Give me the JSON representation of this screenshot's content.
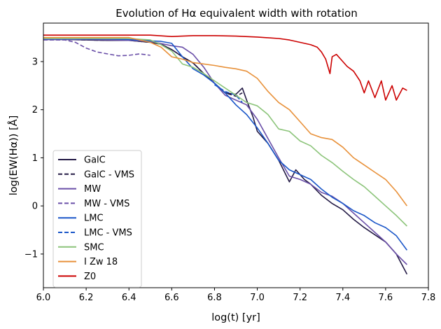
{
  "chart_data": {
    "type": "line",
    "title": "Evolution of Hα equivalent width with rotation",
    "xlabel": "log(t) [yr]",
    "ylabel": "log(EW(Hα)) [Å]",
    "xlim": [
      6.0,
      7.8
    ],
    "ylim": [
      -1.7,
      3.8
    ],
    "xticks": [
      "6.0",
      "6.2",
      "6.4",
      "6.6",
      "6.8",
      "7.0",
      "7.2",
      "7.4",
      "7.6",
      "7.8"
    ],
    "yticks": [
      "3",
      "2",
      "1",
      "0",
      "−1"
    ],
    "legend_position": "lower-left",
    "series": [
      {
        "name": "GalC",
        "color": "#231a45",
        "dash": "solid",
        "x": [
          6.0,
          6.1,
          6.2,
          6.3,
          6.4,
          6.5,
          6.55,
          6.6,
          6.65,
          6.7,
          6.75,
          6.8,
          6.85,
          6.9,
          6.93,
          6.95,
          6.98,
          7.0,
          7.05,
          7.1,
          7.15,
          7.18,
          7.22,
          7.25,
          7.3,
          7.35,
          7.4,
          7.45,
          7.5,
          7.55,
          7.6,
          7.65,
          7.7
        ],
        "y": [
          3.46,
          3.46,
          3.45,
          3.44,
          3.44,
          3.4,
          3.36,
          3.25,
          3.1,
          2.97,
          2.75,
          2.55,
          2.35,
          2.32,
          2.45,
          2.2,
          1.85,
          1.55,
          1.3,
          0.95,
          0.5,
          0.75,
          0.55,
          0.45,
          0.22,
          0.05,
          -0.08,
          -0.28,
          -0.45,
          -0.6,
          -0.75,
          -1.0,
          -1.42
        ]
      },
      {
        "name": "GalC - VMS",
        "color": "#231a45",
        "dash": "dashed",
        "x": [
          6.0,
          6.1,
          6.2,
          6.3,
          6.4,
          6.5,
          6.55,
          6.6,
          6.65,
          6.7,
          6.75,
          6.8,
          6.85,
          6.9,
          6.93
        ],
        "y": [
          3.46,
          3.46,
          3.45,
          3.44,
          3.44,
          3.4,
          3.36,
          3.25,
          3.1,
          2.97,
          2.75,
          2.55,
          2.35,
          2.28,
          2.35
        ]
      },
      {
        "name": "MW",
        "color": "#6a4fa8",
        "dash": "solid",
        "x": [
          6.0,
          6.1,
          6.2,
          6.3,
          6.4,
          6.5,
          6.6,
          6.65,
          6.7,
          6.75,
          6.8,
          6.85,
          6.9,
          6.95,
          7.0,
          7.05,
          7.1,
          7.15,
          7.2,
          7.25,
          7.3,
          7.35,
          7.4,
          7.45,
          7.5,
          7.55,
          7.6,
          7.65,
          7.7
        ],
        "y": [
          3.46,
          3.46,
          3.46,
          3.45,
          3.44,
          3.42,
          3.33,
          3.3,
          3.15,
          2.88,
          2.55,
          2.3,
          2.2,
          2.1,
          1.8,
          1.4,
          1.0,
          0.62,
          0.55,
          0.45,
          0.28,
          0.2,
          0.05,
          -0.15,
          -0.35,
          -0.55,
          -0.75,
          -1.0,
          -1.22
        ]
      },
      {
        "name": "MW - VMS",
        "color": "#6a4fa8",
        "dash": "dashed",
        "x": [
          6.0,
          6.1,
          6.15,
          6.2,
          6.25,
          6.3,
          6.35,
          6.4,
          6.45,
          6.5
        ],
        "y": [
          3.45,
          3.45,
          3.4,
          3.28,
          3.2,
          3.16,
          3.12,
          3.13,
          3.16,
          3.13
        ]
      },
      {
        "name": "LMC",
        "color": "#1a56c8",
        "dash": "solid",
        "x": [
          6.0,
          6.1,
          6.2,
          6.3,
          6.4,
          6.5,
          6.55,
          6.6,
          6.65,
          6.7,
          6.75,
          6.8,
          6.85,
          6.9,
          6.95,
          7.0,
          7.05,
          7.1,
          7.15,
          7.2,
          7.25,
          7.3,
          7.35,
          7.4,
          7.45,
          7.5,
          7.55,
          7.6,
          7.65,
          7.7
        ],
        "y": [
          3.47,
          3.47,
          3.47,
          3.47,
          3.46,
          3.43,
          3.42,
          3.38,
          3.1,
          2.85,
          2.72,
          2.55,
          2.35,
          2.1,
          1.9,
          1.62,
          1.3,
          0.95,
          0.75,
          0.65,
          0.55,
          0.35,
          0.18,
          0.05,
          -0.1,
          -0.2,
          -0.35,
          -0.45,
          -0.62,
          -0.92
        ]
      },
      {
        "name": "LMC - VMS",
        "color": "#1a56c8",
        "dash": "dashed",
        "x": [
          6.8,
          6.85,
          6.9,
          6.93
        ],
        "y": [
          2.52,
          2.38,
          2.3,
          2.15
        ]
      },
      {
        "name": "SMC",
        "color": "#8cc47a",
        "dash": "solid",
        "x": [
          6.0,
          6.1,
          6.2,
          6.3,
          6.4,
          6.5,
          6.55,
          6.6,
          6.65,
          6.7,
          6.75,
          6.8,
          6.85,
          6.9,
          6.95,
          7.0,
          7.05,
          7.1,
          7.15,
          7.2,
          7.25,
          7.3,
          7.35,
          7.4,
          7.45,
          7.5,
          7.55,
          7.6,
          7.65,
          7.7
        ],
        "y": [
          3.48,
          3.48,
          3.48,
          3.48,
          3.48,
          3.45,
          3.35,
          3.22,
          2.95,
          2.88,
          2.75,
          2.6,
          2.45,
          2.3,
          2.15,
          2.08,
          1.9,
          1.6,
          1.55,
          1.35,
          1.25,
          1.05,
          0.9,
          0.72,
          0.55,
          0.4,
          0.2,
          0.0,
          -0.2,
          -0.42
        ]
      },
      {
        "name": "I Zw 18",
        "color": "#e8913a",
        "dash": "solid",
        "x": [
          6.0,
          6.1,
          6.2,
          6.3,
          6.4,
          6.5,
          6.55,
          6.6,
          6.65,
          6.7,
          6.75,
          6.8,
          6.85,
          6.9,
          6.95,
          7.0,
          7.05,
          7.1,
          7.15,
          7.2,
          7.25,
          7.3,
          7.35,
          7.4,
          7.45,
          7.5,
          7.55,
          7.6,
          7.65,
          7.7
        ],
        "y": [
          3.5,
          3.5,
          3.5,
          3.5,
          3.5,
          3.4,
          3.3,
          3.1,
          3.05,
          2.98,
          2.95,
          2.92,
          2.88,
          2.85,
          2.8,
          2.65,
          2.38,
          2.15,
          2.0,
          1.75,
          1.5,
          1.42,
          1.38,
          1.22,
          1.0,
          0.85,
          0.7,
          0.55,
          0.3,
          0.0
        ]
      },
      {
        "name": "Z0",
        "color": "#cc0000",
        "dash": "solid",
        "x": [
          6.0,
          6.2,
          6.4,
          6.5,
          6.6,
          6.7,
          6.8,
          6.9,
          7.0,
          7.1,
          7.15,
          7.2,
          7.25,
          7.28,
          7.3,
          7.32,
          7.34,
          7.35,
          7.37,
          7.4,
          7.42,
          7.45,
          7.48,
          7.5,
          7.52,
          7.55,
          7.58,
          7.6,
          7.63,
          7.65,
          7.68,
          7.7
        ],
        "y": [
          3.55,
          3.55,
          3.55,
          3.55,
          3.52,
          3.54,
          3.54,
          3.53,
          3.51,
          3.48,
          3.45,
          3.4,
          3.35,
          3.3,
          3.2,
          3.05,
          2.75,
          3.1,
          3.15,
          3.0,
          2.9,
          2.8,
          2.6,
          2.35,
          2.6,
          2.25,
          2.6,
          2.2,
          2.5,
          2.2,
          2.45,
          2.4
        ]
      }
    ]
  }
}
